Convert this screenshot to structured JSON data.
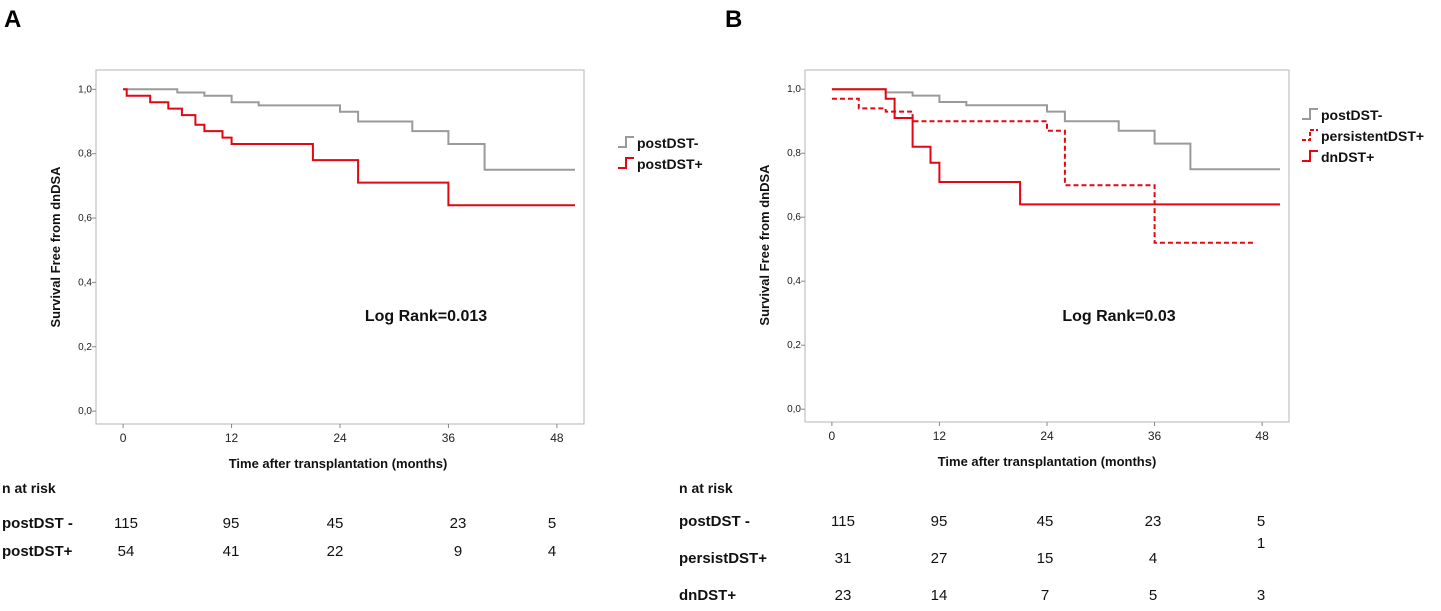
{
  "chart_data": [
    {
      "panel": "A",
      "type": "line",
      "subtype": "kaplan-meier",
      "xlabel": "Time after transplantation (months)",
      "ylabel": "Survival Free from dnDSA",
      "xlim": [
        -3,
        51
      ],
      "ylim": [
        -0.04,
        1.06
      ],
      "x_ticks": [
        0,
        12,
        24,
        36,
        48
      ],
      "y_ticks": [
        "0,0",
        "0,2",
        "0,4",
        "0,6",
        "0,8",
        "1,0"
      ],
      "annotation": "Log Rank=0.013",
      "legend_position": "right",
      "series": [
        {
          "name": "postDST-",
          "color": "#9a9a9a",
          "dashed": false,
          "steps": [
            [
              0,
              1.0
            ],
            [
              6,
              0.99
            ],
            [
              9,
              0.98
            ],
            [
              12,
              0.96
            ],
            [
              15,
              0.95
            ],
            [
              24,
              0.93
            ],
            [
              26,
              0.9
            ],
            [
              32,
              0.87
            ],
            [
              36,
              0.83
            ],
            [
              40,
              0.75
            ],
            [
              50,
              0.75
            ]
          ]
        },
        {
          "name": "postDST+",
          "color": "#e30613",
          "dashed": false,
          "steps": [
            [
              0,
              1.0
            ],
            [
              0.4,
              0.98
            ],
            [
              3,
              0.96
            ],
            [
              5,
              0.94
            ],
            [
              6.5,
              0.92
            ],
            [
              8,
              0.89
            ],
            [
              9,
              0.87
            ],
            [
              11,
              0.85
            ],
            [
              12,
              0.83
            ],
            [
              21,
              0.78
            ],
            [
              26,
              0.71
            ],
            [
              36,
              0.64
            ],
            [
              50,
              0.64
            ]
          ]
        }
      ],
      "risk_table": {
        "title": "n at risk",
        "rows": [
          {
            "label": "postDST -",
            "values": [
              "115",
              "95",
              "45",
              "23",
              "5"
            ]
          },
          {
            "label": "postDST+",
            "values": [
              "54",
              "41",
              "22",
              "9",
              "4"
            ]
          }
        ]
      }
    },
    {
      "panel": "B",
      "type": "line",
      "subtype": "kaplan-meier",
      "xlabel": "Time after transplantation (months)",
      "ylabel": "Survival Free from dnDSA",
      "xlim": [
        -3,
        51
      ],
      "ylim": [
        -0.04,
        1.06
      ],
      "x_ticks": [
        0,
        12,
        24,
        36,
        48
      ],
      "y_ticks": [
        "0,0",
        "0,2",
        "0,4",
        "0,6",
        "0,8",
        "1,0"
      ],
      "annotation": "Log Rank=0.03",
      "legend_position": "right",
      "series": [
        {
          "name": "postDST-",
          "color": "#9a9a9a",
          "dashed": false,
          "steps": [
            [
              0,
              1.0
            ],
            [
              6,
              0.99
            ],
            [
              9,
              0.98
            ],
            [
              12,
              0.96
            ],
            [
              15,
              0.95
            ],
            [
              24,
              0.93
            ],
            [
              26,
              0.9
            ],
            [
              32,
              0.87
            ],
            [
              36,
              0.83
            ],
            [
              40,
              0.75
            ],
            [
              50,
              0.75
            ]
          ]
        },
        {
          "name": "persistentDST+",
          "color": "#e30613",
          "dashed": true,
          "steps": [
            [
              0,
              0.97
            ],
            [
              3,
              0.94
            ],
            [
              6,
              0.93
            ],
            [
              9,
              0.9
            ],
            [
              24,
              0.87
            ],
            [
              26,
              0.7
            ],
            [
              36,
              0.52
            ],
            [
              47,
              0.52
            ]
          ]
        },
        {
          "name": "dnDST+",
          "color": "#e30613",
          "dashed": false,
          "steps": [
            [
              0,
              1.0
            ],
            [
              6,
              0.97
            ],
            [
              7,
              0.91
            ],
            [
              9,
              0.82
            ],
            [
              11,
              0.77
            ],
            [
              12,
              0.71
            ],
            [
              21,
              0.64
            ],
            [
              50,
              0.64
            ]
          ]
        }
      ],
      "risk_table": {
        "title": "n at risk",
        "rows": [
          {
            "label": "postDST -",
            "values": [
              "115",
              "95",
              "45",
              "23",
              "5"
            ]
          },
          {
            "label": "persistDST+",
            "values": [
              "31",
              "27",
              "15",
              "4",
              "1"
            ]
          },
          {
            "label": "dnDST+",
            "values": [
              "23",
              "14",
              "7",
              "5",
              "3"
            ]
          }
        ]
      }
    }
  ]
}
